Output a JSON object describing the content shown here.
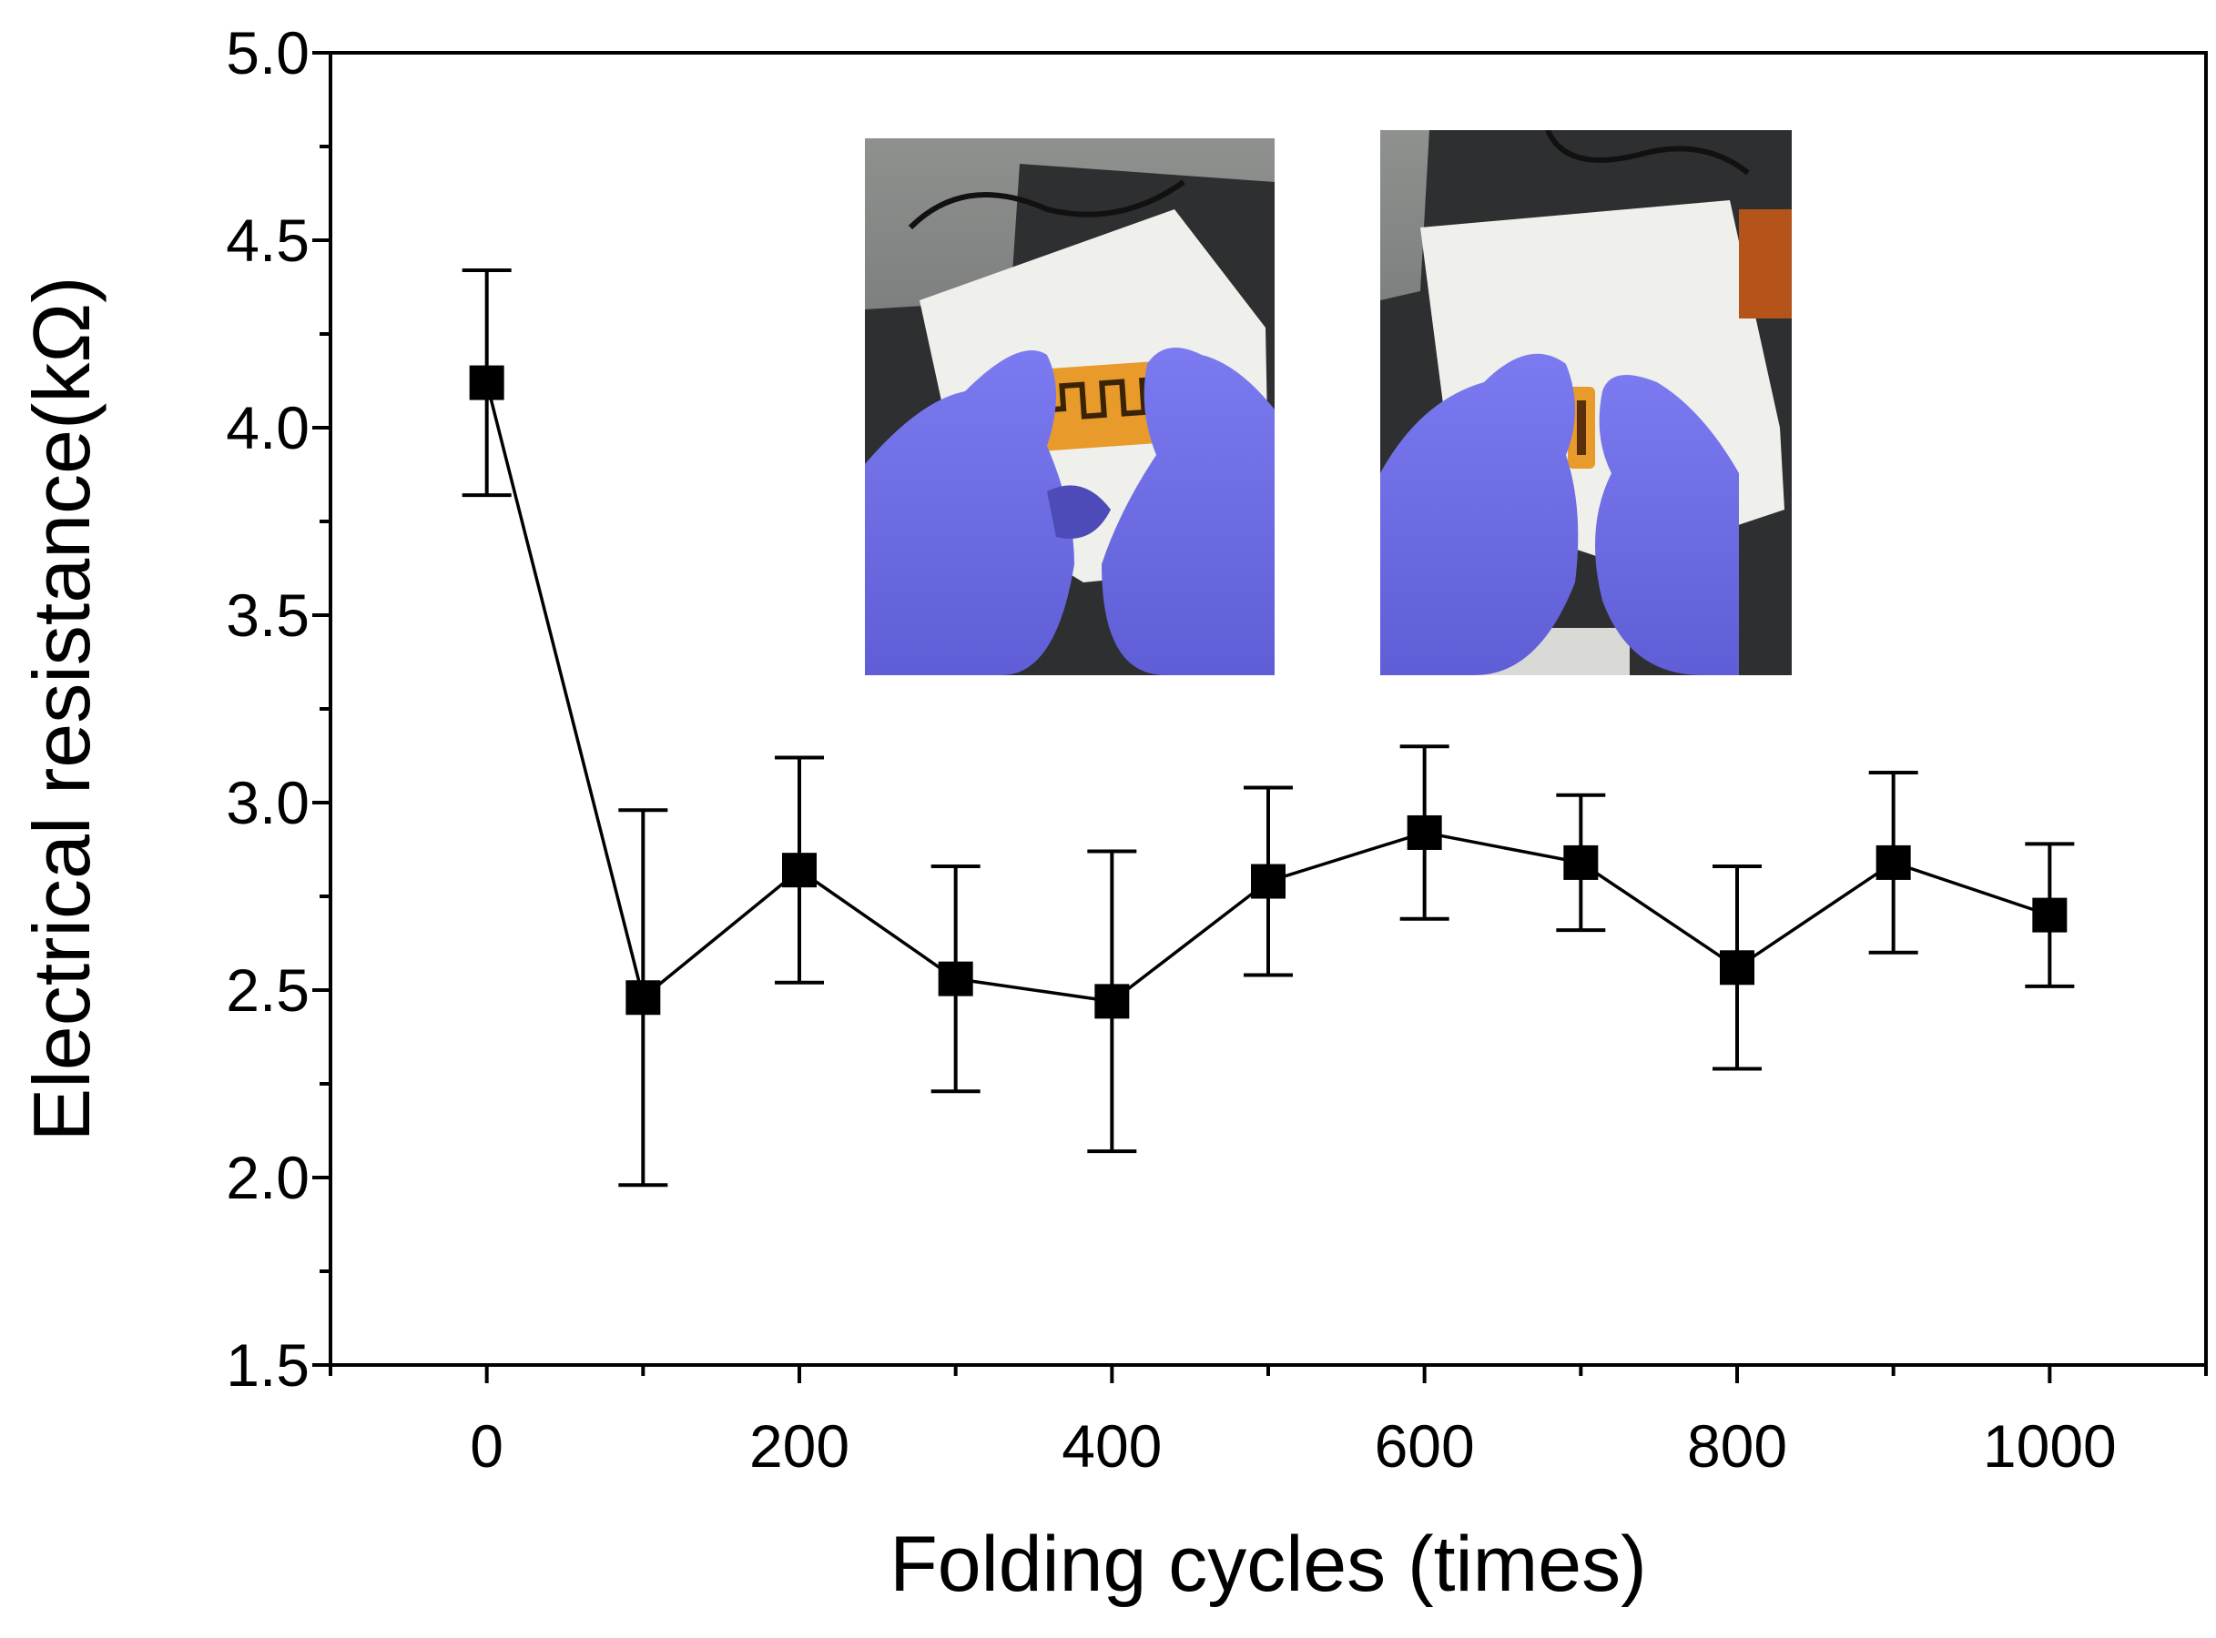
{
  "chart_data": {
    "type": "scatter",
    "title": "",
    "xlabel": "Folding cycles (times)",
    "ylabel": "Electrical resistance(kΩ)",
    "xlim": [
      -100,
      1100
    ],
    "ylim": [
      1.5,
      5.0
    ],
    "x_ticks": [
      0,
      200,
      400,
      600,
      800,
      1000
    ],
    "x_tick_labels": [
      "0",
      "200",
      "400",
      "600",
      "800",
      "1000"
    ],
    "y_ticks": [
      1.5,
      2.0,
      2.5,
      3.0,
      3.5,
      4.0,
      4.5,
      5.0
    ],
    "y_tick_labels": [
      "1.5",
      "2.0",
      "2.5",
      "3.0",
      "3.5",
      "4.0",
      "4.5",
      "5.0"
    ],
    "grid": false,
    "legend": "none",
    "series": [
      {
        "marker": "square",
        "line": true,
        "color": "#000000",
        "x": [
          0,
          100,
          200,
          300,
          400,
          500,
          600,
          700,
          800,
          900,
          1000
        ],
        "y": [
          4.12,
          2.48,
          2.82,
          2.53,
          2.47,
          2.79,
          2.92,
          2.84,
          2.56,
          2.84,
          2.7
        ],
        "error_low": [
          3.82,
          1.98,
          2.52,
          2.23,
          2.07,
          2.54,
          2.69,
          2.66,
          2.29,
          2.6,
          2.51
        ],
        "error_high": [
          4.42,
          2.98,
          3.12,
          2.83,
          2.87,
          3.04,
          3.15,
          3.02,
          2.83,
          3.08,
          2.89
        ]
      }
    ],
    "insets": [
      {
        "description": "gloved hands holding flat orange serpentine sensor film"
      },
      {
        "description": "gloved hands folding the orange sensor film"
      }
    ]
  },
  "colors": {
    "glove": "#6f6ee6",
    "film": "#e89a2a",
    "paper": "#eeeeea",
    "bench_dark": "#3c3d3f"
  }
}
